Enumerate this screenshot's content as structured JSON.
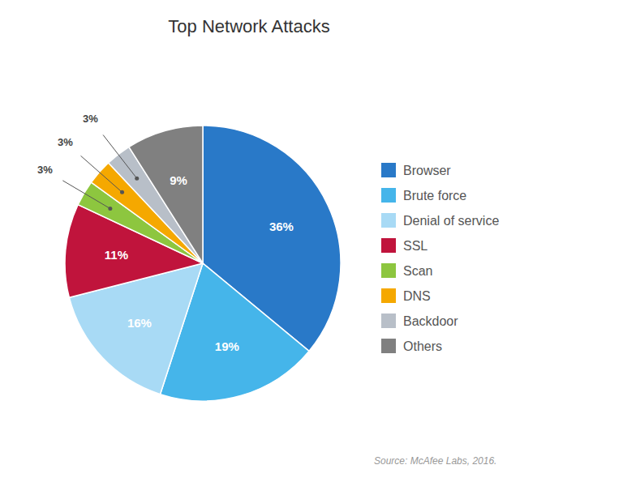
{
  "chart_data": {
    "type": "pie",
    "title": "Top Network Attacks",
    "categories": [
      "Browser",
      "Brute force",
      "Denial of service",
      "SSL",
      "Scan",
      "DNS",
      "Backdoor",
      "Others"
    ],
    "values": [
      36,
      19,
      16,
      11,
      3,
      3,
      3,
      9
    ],
    "value_labels": [
      "36%",
      "19%",
      "16%",
      "11%",
      "3%",
      "3%",
      "3%",
      "9%"
    ],
    "colors": [
      "#2979c8",
      "#45b5ea",
      "#a8daf5",
      "#c0143c",
      "#8dc63f",
      "#f5a800",
      "#b8bfc8",
      "#808080"
    ],
    "data_labels": true,
    "legend": "right",
    "annotations": [
      "Source: McAfee Labs, 2016."
    ]
  }
}
